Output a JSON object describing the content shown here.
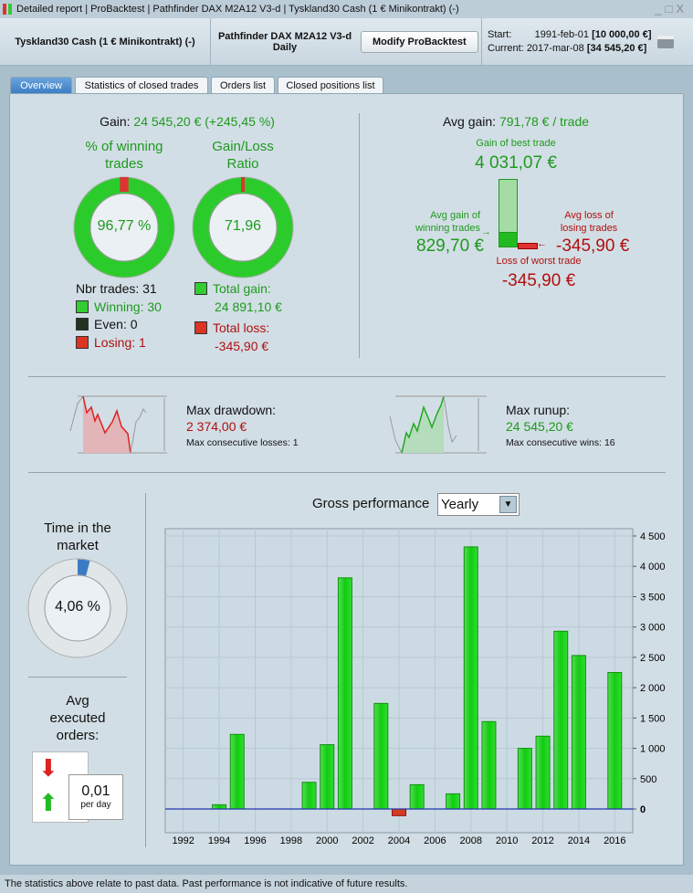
{
  "window": {
    "title": "Detailed report | ProBacktest | Pathfinder DAX M2A12 V3-d | Tyskland30 Cash (1 € Minikontrakt) (-)",
    "controls": [
      "_",
      "□",
      "X"
    ]
  },
  "header": {
    "instrument": "Tyskland30 Cash (1 € Minikontrakt) (-)",
    "system": "Pathfinder DAX M2A12 V3-d",
    "timeframe": "Daily",
    "modify_button": "Modify ProBacktest",
    "start_label": "Start:",
    "start_date": "1991-feb-01",
    "start_value": "[10 000,00 €]",
    "current_label": "Current:",
    "current_date": "2017-mar-08",
    "current_value": "[34 545,20 €]"
  },
  "tabs": [
    {
      "label": "Overview",
      "active": true
    },
    {
      "label": "Statistics of closed trades"
    },
    {
      "label": "Orders list"
    },
    {
      "label": "Closed positions list"
    }
  ],
  "gain": {
    "label": "Gain:",
    "value": "24 545,20 € (+245,45 %)"
  },
  "winning": {
    "title1": "% of winning",
    "title2": "trades",
    "value": "96,77 %",
    "fraction": 0.9677
  },
  "ratio": {
    "title1": "Gain/Loss",
    "title2": "Ratio",
    "value": "71,96",
    "fraction": 0.9863
  },
  "trades": {
    "nbr": "Nbr trades: 31",
    "winning": "Winning: 30",
    "even": "Even: 0",
    "losing": "Losing: 1",
    "total_gain_label": "Total gain:",
    "total_gain": "24 891,10 €",
    "total_loss_label": "Total loss:",
    "total_loss": "-345,90 €"
  },
  "avg": {
    "label": "Avg gain:",
    "value": "791,78 € / trade",
    "best_label": "Gain of best trade",
    "best": "4 031,07 €",
    "avg_win_label1": "Avg gain of",
    "avg_win_label2": "winning trades",
    "avg_win": "829,70 €",
    "avg_loss_label1": "Avg loss of",
    "avg_loss_label2": "losing trades",
    "avg_loss": "-345,90 €",
    "worst_label": "Loss of worst trade",
    "worst": "-345,90 €"
  },
  "drawdown": {
    "label": "Max drawdown:",
    "value": "2 374,00 €",
    "consec": "Max consecutive losses: 1"
  },
  "runup": {
    "label": "Max runup:",
    "value": "24 545,20 €",
    "consec": "Max consecutive wins: 16"
  },
  "market": {
    "title1": "Time in the",
    "title2": "market",
    "value": "4,06 %",
    "fraction": 0.0406
  },
  "orders": {
    "title1": "Avg",
    "title2": "executed",
    "title3": "orders:",
    "value": "0,01",
    "unit": "per day"
  },
  "perf": {
    "label": "Gross performance",
    "period": "Yearly"
  },
  "colors": {
    "gain": "#1e9a1e",
    "loss": "#b01010",
    "bar": "#22cc22",
    "accent": "#3a7cc4"
  },
  "chart_data": {
    "type": "bar",
    "title": "Gross performance",
    "xlim": [
      1991,
      2017
    ],
    "ylim": [
      -500,
      4500
    ],
    "x_ticks": [
      "1992",
      "1994",
      "1996",
      "1998",
      "2000",
      "2002",
      "2004",
      "2006",
      "2008",
      "2010",
      "2012",
      "2014",
      "2016"
    ],
    "y_ticks": [
      "0",
      "500",
      "1 000",
      "1 500",
      "2 000",
      "2 500",
      "3 000",
      "3 500",
      "4 000",
      "4 500"
    ],
    "categories": [
      1994,
      1995,
      1999,
      2000,
      2001,
      2003,
      2004,
      2005,
      2007,
      2008,
      2009,
      2011,
      2012,
      2013,
      2014,
      2016
    ],
    "values": [
      70,
      1230,
      440,
      1060,
      3810,
      1740,
      -110,
      400,
      250,
      4320,
      1440,
      1000,
      1200,
      2930,
      2530,
      2250
    ],
    "grid": true
  },
  "footer": "The statistics above relate to past data. Past performance is not indicative of future results."
}
